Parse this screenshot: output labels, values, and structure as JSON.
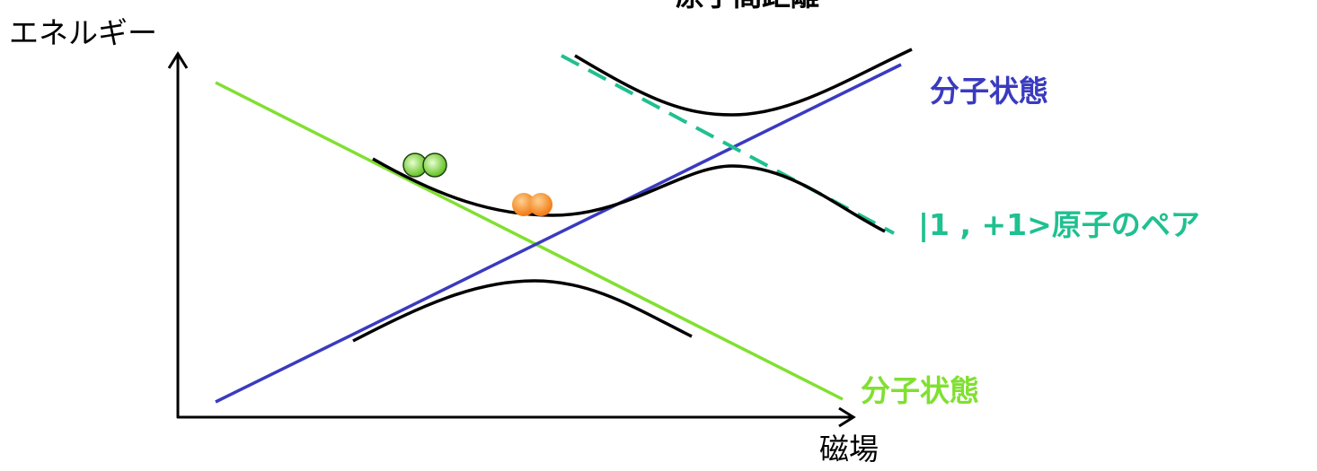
{
  "title": "原子間距離",
  "axes": {
    "y_label": "エネルギー",
    "x_label": "磁場"
  },
  "labels": {
    "molecular_upper": "分子状態",
    "atom_pair": "|1 , +1>原子のペア",
    "molecular_lower": "分子状態"
  }
}
